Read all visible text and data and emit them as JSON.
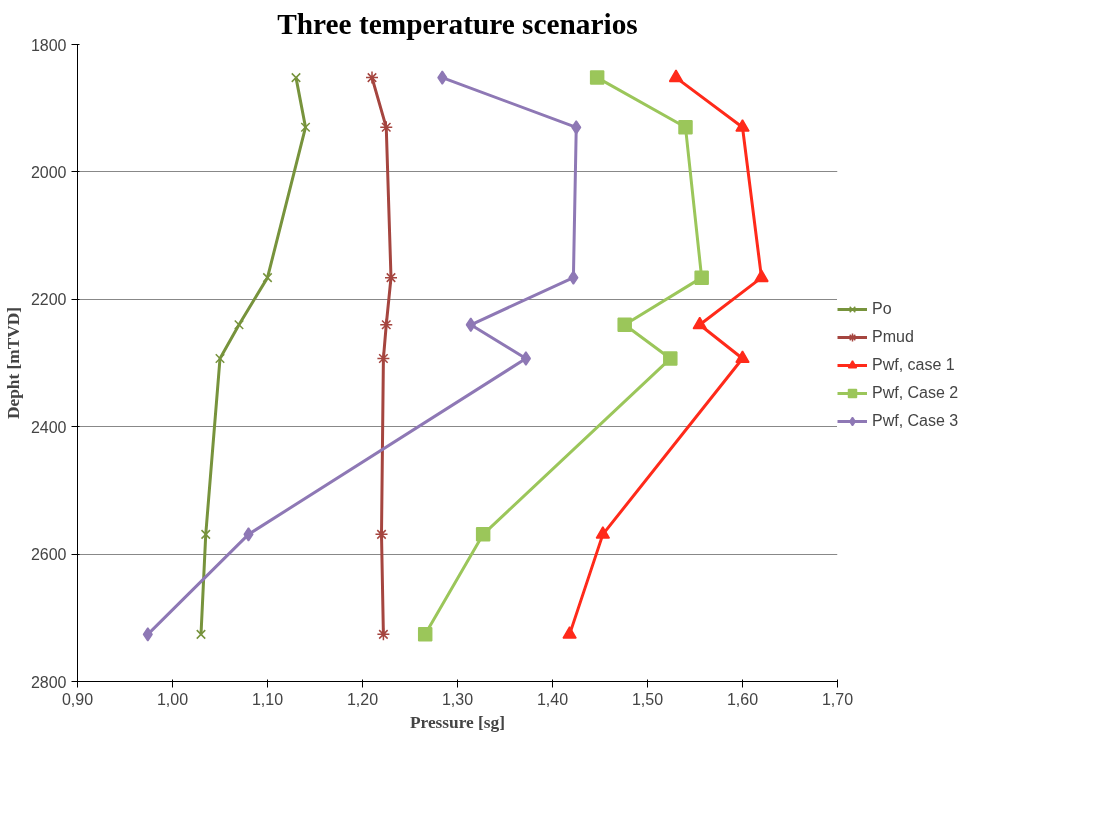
{
  "chart_data": {
    "type": "line",
    "title": "Three temperature scenarios",
    "xlabel": "Pressure [sg]",
    "ylabel": "Depht [mTVD]",
    "xlim": [
      0.9,
      1.7
    ],
    "xticks": [
      {
        "value": 0.9,
        "label": "0,90"
      },
      {
        "value": 1.0,
        "label": "1,00"
      },
      {
        "value": 1.1,
        "label": "1,10"
      },
      {
        "value": 1.2,
        "label": "1,20"
      },
      {
        "value": 1.3,
        "label": "1,30"
      },
      {
        "value": 1.4,
        "label": "1,40"
      },
      {
        "value": 1.5,
        "label": "1,50"
      },
      {
        "value": 1.6,
        "label": "1,60"
      },
      {
        "value": 1.7,
        "label": "1,70"
      }
    ],
    "ylim": [
      2800,
      1800
    ],
    "yticks": [
      1800,
      2000,
      2200,
      2400,
      2600,
      2800
    ],
    "grid": "y",
    "legend": "right",
    "line_style": "solid",
    "series": [
      {
        "name": "Po",
        "color": "#77933c",
        "marker": "cross",
        "x": [
          1.13,
          1.14,
          1.1,
          1.07,
          1.05,
          1.035,
          1.03
        ],
        "values": [
          1852,
          1930,
          2166,
          2240,
          2293,
          2569,
          2726
        ]
      },
      {
        "name": "Pmud",
        "color": "#a5453f",
        "marker": "cross",
        "x": [
          1.21,
          1.225,
          1.23,
          1.225,
          1.222,
          1.22,
          1.222
        ],
        "values": [
          1852,
          1930,
          2166,
          2240,
          2293,
          2569,
          2726
        ]
      },
      {
        "name": "Pwf, case 1",
        "color": "#ff2a1a",
        "marker": "triangle",
        "x": [
          1.53,
          1.6,
          1.62,
          1.555,
          1.6,
          1.453,
          1.418
        ],
        "values": [
          1852,
          1930,
          2166,
          2240,
          2293,
          2569,
          2726
        ]
      },
      {
        "name": "Pwf, Case 2",
        "color": "#9bc65a",
        "marker": "square",
        "x": [
          1.447,
          1.54,
          1.557,
          1.476,
          1.524,
          1.327,
          1.266
        ],
        "values": [
          1852,
          1930,
          2166,
          2240,
          2293,
          2569,
          2726
        ]
      },
      {
        "name": "Pwf, Case 3",
        "color": "#8e78b5",
        "marker": "diamond",
        "x": [
          1.284,
          1.425,
          1.422,
          1.314,
          1.372,
          1.08,
          0.974
        ],
        "values": [
          1852,
          1930,
          2166,
          2240,
          2293,
          2569,
          2726
        ]
      }
    ]
  }
}
